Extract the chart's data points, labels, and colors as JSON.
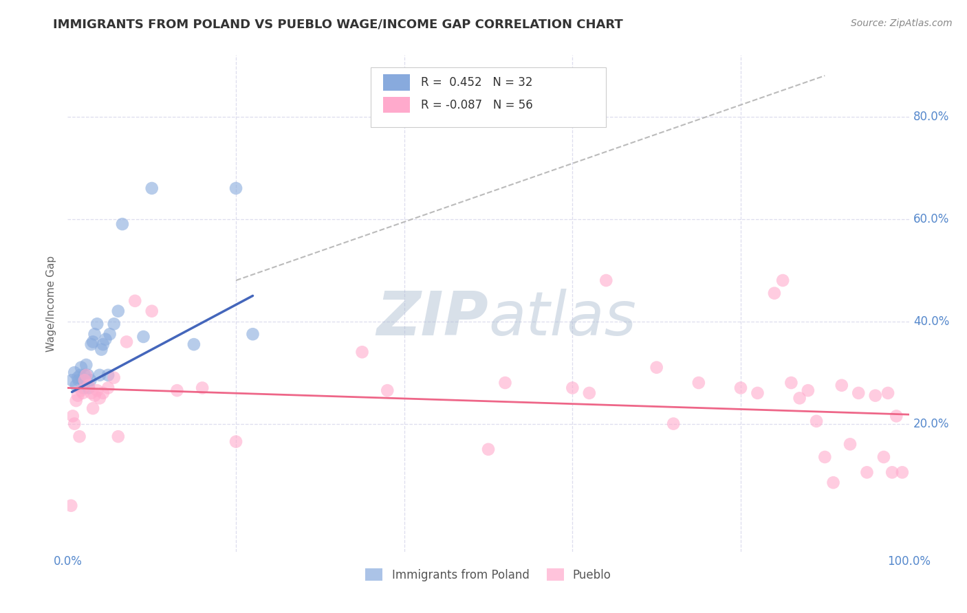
{
  "title": "IMMIGRANTS FROM POLAND VS PUEBLO WAGE/INCOME GAP CORRELATION CHART",
  "source": "Source: ZipAtlas.com",
  "ylabel": "Wage/Income Gap",
  "xlim": [
    0.0,
    1.0
  ],
  "ylim": [
    -0.05,
    0.92
  ],
  "yticks": [
    0.2,
    0.4,
    0.6,
    0.8
  ],
  "ytick_labels": [
    "20.0%",
    "40.0%",
    "60.0%",
    "80.0%"
  ],
  "blue_color": "#88AADD",
  "pink_color": "#FFAACC",
  "blue_line_color": "#4466BB",
  "pink_line_color": "#EE6688",
  "tick_color": "#5588CC",
  "grid_color": "#DDDDEE",
  "background_color": "#FFFFFF",
  "legend_blue_r": "R =  0.452",
  "legend_blue_n": "N = 32",
  "legend_pink_r": "R = -0.087",
  "legend_pink_n": "N = 56",
  "legend_label_blue": "Immigrants from Poland",
  "legend_label_pink": "Pueblo",
  "blue_scatter_x": [
    0.005,
    0.008,
    0.01,
    0.012,
    0.013,
    0.015,
    0.016,
    0.018,
    0.019,
    0.02,
    0.022,
    0.024,
    0.025,
    0.027,
    0.028,
    0.03,
    0.032,
    0.035,
    0.038,
    0.04,
    0.042,
    0.045,
    0.048,
    0.05,
    0.055,
    0.06,
    0.065,
    0.09,
    0.1,
    0.15,
    0.2,
    0.22
  ],
  "blue_scatter_y": [
    0.285,
    0.3,
    0.275,
    0.29,
    0.285,
    0.295,
    0.31,
    0.285,
    0.27,
    0.295,
    0.315,
    0.295,
    0.27,
    0.285,
    0.355,
    0.36,
    0.375,
    0.395,
    0.295,
    0.345,
    0.355,
    0.365,
    0.295,
    0.375,
    0.395,
    0.42,
    0.59,
    0.37,
    0.66,
    0.355,
    0.66,
    0.375
  ],
  "pink_scatter_x": [
    0.004,
    0.006,
    0.008,
    0.01,
    0.012,
    0.014,
    0.016,
    0.018,
    0.02,
    0.022,
    0.025,
    0.028,
    0.03,
    0.032,
    0.035,
    0.038,
    0.042,
    0.048,
    0.055,
    0.06,
    0.07,
    0.08,
    0.1,
    0.13,
    0.16,
    0.2,
    0.35,
    0.38,
    0.5,
    0.52,
    0.6,
    0.62,
    0.64,
    0.7,
    0.72,
    0.75,
    0.8,
    0.82,
    0.84,
    0.85,
    0.86,
    0.87,
    0.88,
    0.89,
    0.9,
    0.91,
    0.92,
    0.93,
    0.94,
    0.95,
    0.96,
    0.97,
    0.975,
    0.98,
    0.985,
    0.992
  ],
  "pink_scatter_y": [
    0.04,
    0.215,
    0.2,
    0.245,
    0.255,
    0.175,
    0.265,
    0.26,
    0.285,
    0.295,
    0.275,
    0.26,
    0.23,
    0.255,
    0.265,
    0.25,
    0.26,
    0.27,
    0.29,
    0.175,
    0.36,
    0.44,
    0.42,
    0.265,
    0.27,
    0.165,
    0.34,
    0.265,
    0.15,
    0.28,
    0.27,
    0.26,
    0.48,
    0.31,
    0.2,
    0.28,
    0.27,
    0.26,
    0.455,
    0.48,
    0.28,
    0.25,
    0.265,
    0.205,
    0.135,
    0.085,
    0.275,
    0.16,
    0.26,
    0.105,
    0.255,
    0.135,
    0.26,
    0.105,
    0.215,
    0.105
  ],
  "blue_line_x": [
    0.005,
    0.22
  ],
  "blue_line_y": [
    0.262,
    0.45
  ],
  "pink_line_x": [
    0.0,
    1.0
  ],
  "pink_line_y": [
    0.27,
    0.218
  ],
  "dashed_line_x": [
    0.2,
    0.9
  ],
  "dashed_line_y": [
    0.48,
    0.88
  ],
  "watermark_zip": "ZIP",
  "watermark_atlas": "atlas",
  "watermark_color": "#AABBD0",
  "watermark_fontsize": 64,
  "title_fontsize": 13,
  "source_fontsize": 10,
  "axis_label_fontsize": 11,
  "tick_fontsize": 12
}
